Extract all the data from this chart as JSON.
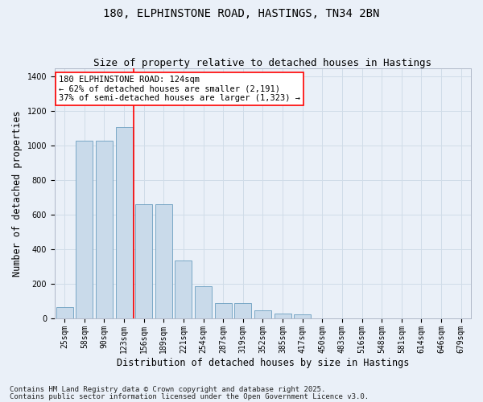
{
  "title": "180, ELPHINSTONE ROAD, HASTINGS, TN34 2BN",
  "subtitle": "Size of property relative to detached houses in Hastings",
  "xlabel": "Distribution of detached houses by size in Hastings",
  "ylabel": "Number of detached properties",
  "categories": [
    "25sqm",
    "58sqm",
    "90sqm",
    "123sqm",
    "156sqm",
    "189sqm",
    "221sqm",
    "254sqm",
    "287sqm",
    "319sqm",
    "352sqm",
    "385sqm",
    "417sqm",
    "450sqm",
    "483sqm",
    "516sqm",
    "548sqm",
    "581sqm",
    "614sqm",
    "646sqm",
    "679sqm"
  ],
  "values": [
    65,
    1030,
    1030,
    1110,
    660,
    660,
    335,
    185,
    88,
    88,
    45,
    28,
    25,
    0,
    0,
    0,
    0,
    0,
    0,
    0,
    0
  ],
  "bar_color": "#c9daea",
  "bar_edge_color": "#6a9ec0",
  "grid_color": "#d0dce8",
  "bg_color": "#eaf0f8",
  "vline_x": 3.5,
  "vline_color": "red",
  "annotation_text": "180 ELPHINSTONE ROAD: 124sqm\n← 62% of detached houses are smaller (2,191)\n37% of semi-detached houses are larger (1,323) →",
  "annotation_box_facecolor": "white",
  "annotation_box_edge": "red",
  "footer1": "Contains HM Land Registry data © Crown copyright and database right 2025.",
  "footer2": "Contains public sector information licensed under the Open Government Licence v3.0.",
  "ylim": [
    0,
    1450
  ],
  "title_fontsize": 10,
  "subtitle_fontsize": 9,
  "axis_label_fontsize": 8.5,
  "tick_fontsize": 7,
  "annot_fontsize": 7.5,
  "footer_fontsize": 6.5
}
